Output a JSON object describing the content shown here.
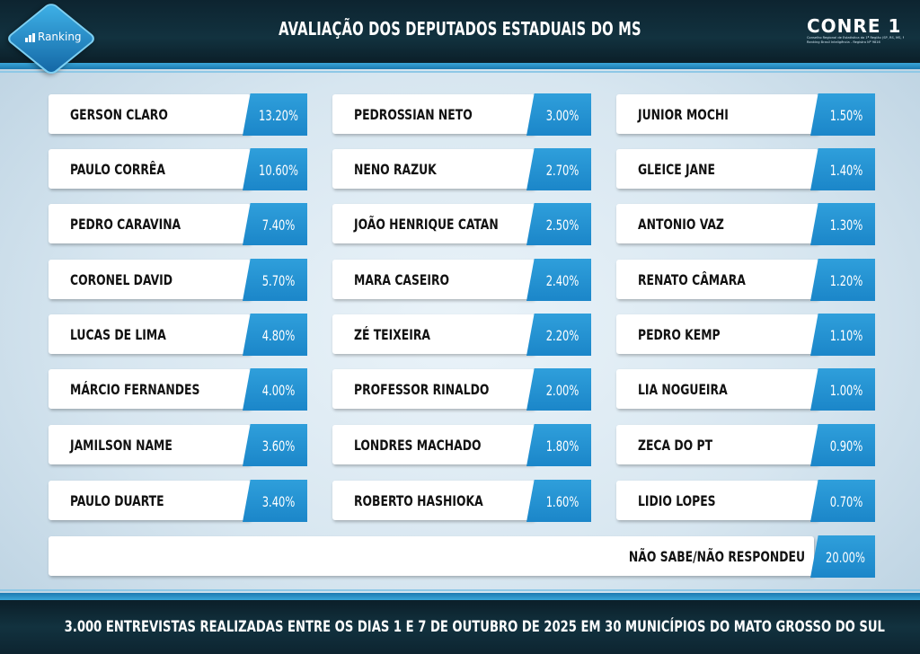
{
  "header": {
    "title": "AVALIAÇÃO DOS DEPUTADOS ESTADUAIS DO MS",
    "badge_label": "Ranking",
    "logo_text": "CONRE 1",
    "logo_subtext_1": "Conselho Regional de Estatística da 1ª Região (SP, RS, MS, MT, TO)",
    "logo_subtext_2": "Ranking Brasil Inteligência - Registro Nº 9816"
  },
  "columns": [
    [
      {
        "name": "GERSON CLARO",
        "pct": "13.20%"
      },
      {
        "name": "PAULO CORRÊA",
        "pct": "10.60%"
      },
      {
        "name": "PEDRO CARAVINA",
        "pct": "7.40%"
      },
      {
        "name": "CORONEL DAVID",
        "pct": "5.70%"
      },
      {
        "name": "LUCAS DE LIMA",
        "pct": "4.80%"
      },
      {
        "name": "MÁRCIO FERNANDES",
        "pct": "4.00%"
      },
      {
        "name": "JAMILSON NAME",
        "pct": "3.60%"
      },
      {
        "name": "PAULO DUARTE",
        "pct": "3.40%"
      }
    ],
    [
      {
        "name": "PEDROSSIAN NETO",
        "pct": "3.00%"
      },
      {
        "name": "NENO RAZUK",
        "pct": "2.70%"
      },
      {
        "name": "JOÃO HENRIQUE CATAN",
        "pct": "2.50%"
      },
      {
        "name": "MARA CASEIRO",
        "pct": "2.40%"
      },
      {
        "name": "ZÉ TEIXEIRA",
        "pct": "2.20%"
      },
      {
        "name": "PROFESSOR RINALDO",
        "pct": "2.00%"
      },
      {
        "name": "LONDRES MACHADO",
        "pct": "1.80%"
      },
      {
        "name": "ROBERTO HASHIOKA",
        "pct": "1.60%"
      }
    ],
    [
      {
        "name": "JUNIOR MOCHI",
        "pct": "1.50%"
      },
      {
        "name": "GLEICE JANE",
        "pct": "1.40%"
      },
      {
        "name": "ANTONIO VAZ",
        "pct": "1.30%"
      },
      {
        "name": "RENATO CÂMARA",
        "pct": "1.20%"
      },
      {
        "name": "PEDRO KEMP",
        "pct": "1.10%"
      },
      {
        "name": "LIA NOGUEIRA",
        "pct": "1.00%"
      },
      {
        "name": "ZECA DO PT",
        "pct": "0.90%"
      },
      {
        "name": "LIDIO LOPES",
        "pct": "0.70%"
      }
    ]
  ],
  "summary": {
    "label": "NÃO SABE/NÃO RESPONDEU",
    "pct": "20.00%"
  },
  "footer": {
    "text": "3.000 ENTREVISTAS REALIZADAS ENTRE OS DIAS 1 E 7 DE OUTUBRO DE 2025 EM 30 MUNICÍPIOS DO MATO GROSSO DO SUL"
  },
  "colors": {
    "accent": "#1b86c9",
    "header_bg": "#12323f"
  }
}
